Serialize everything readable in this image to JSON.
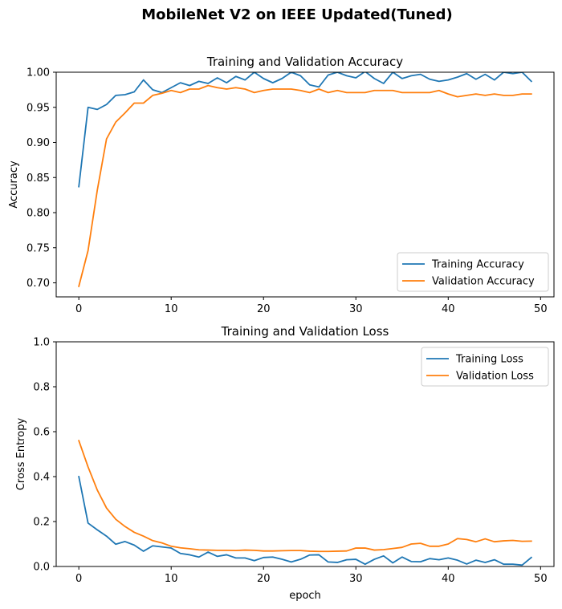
{
  "figure": {
    "title": "MobileNet V2 on IEEE Updated(Tuned)"
  },
  "chart_data": [
    {
      "type": "line",
      "title": "Training and Validation Accuracy",
      "xlabel": "",
      "ylabel": "Accuracy",
      "xlim": [
        -2.45,
        51.45
      ],
      "ylim": [
        0.68,
        1.0
      ],
      "xticks": [
        0,
        10,
        20,
        30,
        40,
        50
      ],
      "yticks": [
        0.7,
        0.75,
        0.8,
        0.85,
        0.9,
        0.95,
        1.0
      ],
      "ytick_decimals": 2,
      "grid": false,
      "legend_position": "lower right",
      "series": [
        {
          "name": "Training Accuracy",
          "color": "#1f77b4",
          "x": [
            0,
            1,
            2,
            3,
            4,
            5,
            6,
            7,
            8,
            9,
            10,
            11,
            12,
            13,
            14,
            15,
            16,
            17,
            18,
            19,
            20,
            21,
            22,
            23,
            24,
            25,
            26,
            27,
            28,
            29,
            30,
            31,
            32,
            33,
            34,
            35,
            36,
            37,
            38,
            39,
            40,
            41,
            42,
            43,
            44,
            45,
            46,
            47,
            48,
            49
          ],
          "values": [
            0.837,
            0.95,
            0.947,
            0.954,
            0.967,
            0.968,
            0.972,
            0.989,
            0.975,
            0.971,
            0.978,
            0.985,
            0.981,
            0.987,
            0.984,
            0.992,
            0.985,
            0.994,
            0.989,
            1.0,
            0.991,
            0.985,
            0.991,
            1.0,
            0.995,
            0.982,
            0.979,
            0.996,
            1.0,
            0.995,
            0.992,
            1.001,
            0.991,
            0.984,
            1.0,
            0.991,
            0.995,
            0.997,
            0.99,
            0.987,
            0.989,
            0.993,
            0.998,
            0.99,
            0.997,
            0.989,
            1.0,
            0.998,
            1.0,
            0.987
          ]
        },
        {
          "name": "Validation Accuracy",
          "color": "#ff7f0e",
          "x": [
            0,
            1,
            2,
            3,
            4,
            5,
            6,
            7,
            8,
            9,
            10,
            11,
            12,
            13,
            14,
            15,
            16,
            17,
            18,
            19,
            20,
            21,
            22,
            23,
            24,
            25,
            26,
            27,
            28,
            29,
            30,
            31,
            32,
            33,
            34,
            35,
            36,
            37,
            38,
            39,
            40,
            41,
            42,
            43,
            44,
            45,
            46,
            47,
            48,
            49
          ],
          "values": [
            0.695,
            0.746,
            0.832,
            0.905,
            0.929,
            0.942,
            0.956,
            0.956,
            0.967,
            0.97,
            0.974,
            0.971,
            0.976,
            0.976,
            0.981,
            0.978,
            0.976,
            0.978,
            0.976,
            0.971,
            0.974,
            0.976,
            0.976,
            0.976,
            0.974,
            0.971,
            0.976,
            0.971,
            0.974,
            0.971,
            0.971,
            0.971,
            0.974,
            0.974,
            0.974,
            0.971,
            0.971,
            0.971,
            0.971,
            0.974,
            0.969,
            0.965,
            0.967,
            0.969,
            0.967,
            0.969,
            0.967,
            0.967,
            0.969,
            0.969
          ]
        }
      ]
    },
    {
      "type": "line",
      "title": "Training and Validation Loss",
      "xlabel": "epoch",
      "ylabel": "Cross Entropy",
      "xlim": [
        -2.45,
        51.45
      ],
      "ylim": [
        0.0,
        1.0
      ],
      "xticks": [
        0,
        10,
        20,
        30,
        40,
        50
      ],
      "yticks": [
        0.0,
        0.2,
        0.4,
        0.6,
        0.8,
        1.0
      ],
      "ytick_decimals": 1,
      "grid": false,
      "legend_position": "upper right",
      "series": [
        {
          "name": "Training Loss",
          "color": "#1f77b4",
          "x": [
            0,
            1,
            2,
            3,
            4,
            5,
            6,
            7,
            8,
            9,
            10,
            11,
            12,
            13,
            14,
            15,
            16,
            17,
            18,
            19,
            20,
            21,
            22,
            23,
            24,
            25,
            26,
            27,
            28,
            29,
            30,
            31,
            32,
            33,
            34,
            35,
            36,
            37,
            38,
            39,
            40,
            41,
            42,
            43,
            44,
            45,
            46,
            47,
            48,
            49
          ],
          "values": [
            0.4,
            0.193,
            0.163,
            0.135,
            0.099,
            0.111,
            0.095,
            0.068,
            0.092,
            0.087,
            0.082,
            0.058,
            0.052,
            0.042,
            0.064,
            0.045,
            0.052,
            0.038,
            0.038,
            0.026,
            0.04,
            0.042,
            0.032,
            0.02,
            0.032,
            0.051,
            0.052,
            0.02,
            0.018,
            0.03,
            0.032,
            0.01,
            0.032,
            0.047,
            0.016,
            0.042,
            0.022,
            0.021,
            0.035,
            0.03,
            0.038,
            0.028,
            0.011,
            0.028,
            0.018,
            0.03,
            0.01,
            0.01,
            0.006,
            0.04
          ]
        },
        {
          "name": "Validation Loss",
          "color": "#ff7f0e",
          "x": [
            0,
            1,
            2,
            3,
            4,
            5,
            6,
            7,
            8,
            9,
            10,
            11,
            12,
            13,
            14,
            15,
            16,
            17,
            18,
            19,
            20,
            21,
            22,
            23,
            24,
            25,
            26,
            27,
            28,
            29,
            30,
            31,
            32,
            33,
            34,
            35,
            36,
            37,
            38,
            39,
            40,
            41,
            42,
            43,
            44,
            45,
            46,
            47,
            48,
            49
          ],
          "values": [
            0.56,
            0.443,
            0.34,
            0.26,
            0.21,
            0.178,
            0.152,
            0.135,
            0.115,
            0.105,
            0.09,
            0.083,
            0.079,
            0.074,
            0.073,
            0.072,
            0.072,
            0.071,
            0.073,
            0.072,
            0.069,
            0.069,
            0.07,
            0.071,
            0.071,
            0.068,
            0.067,
            0.067,
            0.068,
            0.069,
            0.082,
            0.082,
            0.073,
            0.075,
            0.08,
            0.085,
            0.1,
            0.103,
            0.09,
            0.09,
            0.1,
            0.124,
            0.12,
            0.11,
            0.123,
            0.11,
            0.114,
            0.116,
            0.112,
            0.113
          ]
        }
      ]
    }
  ]
}
